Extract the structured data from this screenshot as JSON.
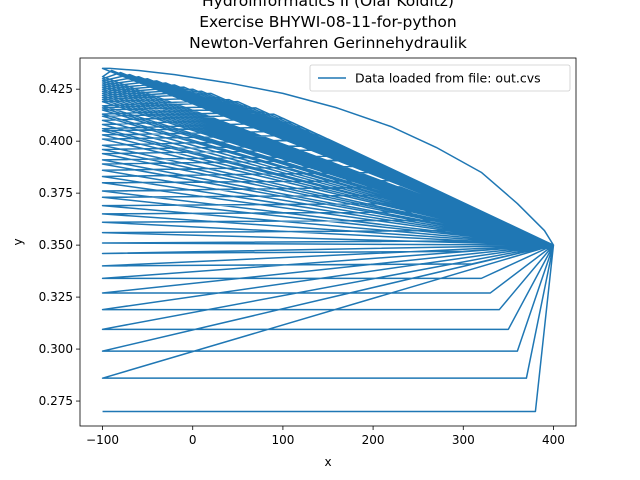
{
  "chart_data": {
    "type": "line",
    "title_lines": [
      "Hydroinformatics II (Olaf Kolditz)",
      "Exercise BHYWI-08-11-for-python",
      "Newton-Verfahren Gerinnehydraulik"
    ],
    "xlabel": "x",
    "ylabel": "y",
    "xlim": [
      -125,
      425
    ],
    "ylim": [
      0.263,
      0.44
    ],
    "x_ticks": [
      -100,
      0,
      100,
      200,
      300,
      400
    ],
    "x_tick_labels": [
      "−100",
      "0",
      "100",
      "200",
      "300",
      "400"
    ],
    "y_ticks": [
      0.275,
      0.3,
      0.325,
      0.35,
      0.375,
      0.4,
      0.425
    ],
    "y_tick_labels": [
      "0.275",
      "0.300",
      "0.325",
      "0.350",
      "0.375",
      "0.400",
      "0.425"
    ],
    "legend": {
      "label": "Data loaded from file: out.cvs",
      "placement": "top-right"
    },
    "series_color": "#1f77b4",
    "grid": false,
    "series": [
      {
        "name": "Data loaded from file: out.cvs",
        "points": [
          [
            -100,
            0.27
          ],
          [
            380,
            0.27
          ],
          [
            400,
            0.35
          ],
          [
            -100,
            0.286
          ],
          [
            370,
            0.286
          ],
          [
            400,
            0.35
          ],
          [
            -100,
            0.299
          ],
          [
            360,
            0.299
          ],
          [
            400,
            0.35
          ],
          [
            -100,
            0.3095
          ],
          [
            350,
            0.3095
          ],
          [
            400,
            0.35
          ],
          [
            -100,
            0.319
          ],
          [
            340,
            0.319
          ],
          [
            400,
            0.35
          ],
          [
            -100,
            0.327
          ],
          [
            330,
            0.327
          ],
          [
            400,
            0.35
          ],
          [
            -100,
            0.334
          ],
          [
            320,
            0.334
          ],
          [
            400,
            0.35
          ],
          [
            -100,
            0.34
          ],
          [
            310,
            0.341
          ],
          [
            400,
            0.35
          ],
          [
            -100,
            0.346
          ],
          [
            300,
            0.347
          ],
          [
            400,
            0.35
          ],
          [
            -100,
            0.351
          ],
          [
            290,
            0.352
          ],
          [
            400,
            0.35
          ],
          [
            -100,
            0.356
          ],
          [
            280,
            0.357
          ],
          [
            400,
            0.35
          ],
          [
            -100,
            0.361
          ],
          [
            270,
            0.362
          ],
          [
            400,
            0.35
          ],
          [
            -100,
            0.365
          ],
          [
            260,
            0.366
          ],
          [
            400,
            0.35
          ],
          [
            -100,
            0.369
          ],
          [
            250,
            0.37
          ],
          [
            400,
            0.35
          ],
          [
            -100,
            0.373
          ],
          [
            240,
            0.374
          ],
          [
            400,
            0.35
          ],
          [
            -100,
            0.376
          ],
          [
            230,
            0.378
          ],
          [
            400,
            0.35
          ],
          [
            -100,
            0.38
          ],
          [
            220,
            0.381
          ],
          [
            400,
            0.35
          ],
          [
            -100,
            0.383
          ],
          [
            210,
            0.385
          ],
          [
            400,
            0.35
          ],
          [
            -100,
            0.386
          ],
          [
            200,
            0.388
          ],
          [
            400,
            0.35
          ],
          [
            -100,
            0.389
          ],
          [
            190,
            0.391
          ],
          [
            400,
            0.35
          ],
          [
            -100,
            0.391
          ],
          [
            180,
            0.393
          ],
          [
            400,
            0.35
          ],
          [
            -100,
            0.394
          ],
          [
            170,
            0.396
          ],
          [
            400,
            0.35
          ],
          [
            -100,
            0.396
          ],
          [
            160,
            0.398
          ],
          [
            400,
            0.35
          ],
          [
            -100,
            0.398
          ],
          [
            150,
            0.401
          ],
          [
            400,
            0.35
          ],
          [
            -100,
            0.401
          ],
          [
            140,
            0.403
          ],
          [
            400,
            0.35
          ],
          [
            -100,
            0.403
          ],
          [
            130,
            0.405
          ],
          [
            400,
            0.35
          ],
          [
            -100,
            0.405
          ],
          [
            120,
            0.407
          ],
          [
            400,
            0.35
          ],
          [
            -100,
            0.406
          ],
          [
            110,
            0.409
          ],
          [
            400,
            0.35
          ],
          [
            -100,
            0.408
          ],
          [
            100,
            0.411
          ],
          [
            400,
            0.35
          ],
          [
            -100,
            0.41
          ],
          [
            90,
            0.413
          ],
          [
            400,
            0.35
          ],
          [
            -100,
            0.412
          ],
          [
            80,
            0.414
          ],
          [
            400,
            0.35
          ],
          [
            -100,
            0.413
          ],
          [
            70,
            0.416
          ],
          [
            400,
            0.35
          ],
          [
            -100,
            0.415
          ],
          [
            60,
            0.417
          ],
          [
            400,
            0.35
          ],
          [
            -100,
            0.416
          ],
          [
            50,
            0.419
          ],
          [
            400,
            0.35
          ],
          [
            -100,
            0.417
          ],
          [
            40,
            0.42
          ],
          [
            400,
            0.35
          ],
          [
            -100,
            0.419
          ],
          [
            30,
            0.421
          ],
          [
            400,
            0.35
          ],
          [
            -100,
            0.42
          ],
          [
            20,
            0.423
          ],
          [
            400,
            0.35
          ],
          [
            -100,
            0.421
          ],
          [
            10,
            0.424
          ],
          [
            400,
            0.35
          ],
          [
            -100,
            0.422
          ],
          [
            0,
            0.425
          ],
          [
            400,
            0.35
          ],
          [
            -100,
            0.423
          ],
          [
            -10,
            0.426
          ],
          [
            400,
            0.35
          ],
          [
            -100,
            0.424
          ],
          [
            -20,
            0.427
          ],
          [
            400,
            0.35
          ],
          [
            -100,
            0.425
          ],
          [
            -30,
            0.428
          ],
          [
            400,
            0.35
          ],
          [
            -100,
            0.426
          ],
          [
            -40,
            0.429
          ],
          [
            400,
            0.35
          ],
          [
            -100,
            0.427
          ],
          [
            -50,
            0.43
          ],
          [
            400,
            0.35
          ],
          [
            -100,
            0.428
          ],
          [
            -60,
            0.431
          ],
          [
            400,
            0.35
          ],
          [
            -100,
            0.429
          ],
          [
            -70,
            0.432
          ],
          [
            400,
            0.35
          ],
          [
            -100,
            0.43
          ],
          [
            -80,
            0.433
          ],
          [
            400,
            0.35
          ],
          [
            -100,
            0.431
          ],
          [
            -90,
            0.434
          ],
          [
            400,
            0.35
          ],
          [
            -100,
            0.435
          ],
          [
            -92,
            0.435
          ],
          [
            -60,
            0.434
          ],
          [
            -20,
            0.432
          ],
          [
            40,
            0.428
          ],
          [
            100,
            0.423
          ],
          [
            160,
            0.416
          ],
          [
            220,
            0.407
          ],
          [
            270,
            0.397
          ],
          [
            320,
            0.385
          ],
          [
            360,
            0.37
          ],
          [
            390,
            0.357
          ],
          [
            400,
            0.35
          ]
        ]
      }
    ]
  }
}
